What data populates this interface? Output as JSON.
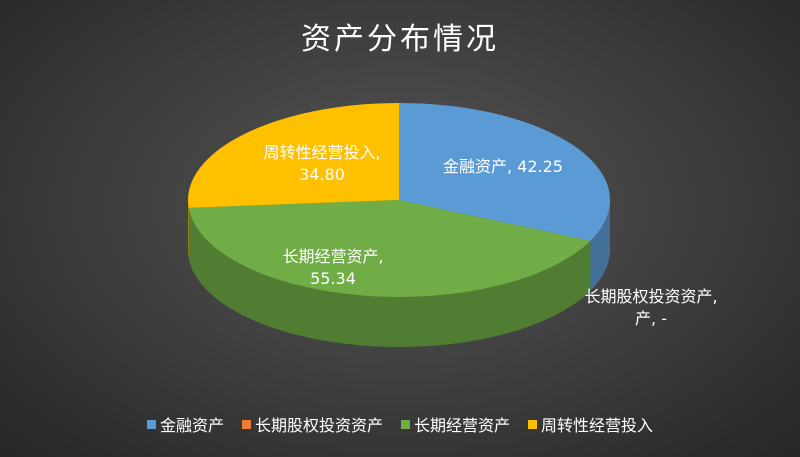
{
  "chart_data": {
    "type": "pie",
    "title": "资产分布情况",
    "categories": [
      "金融资产",
      "长期股权投资资产",
      "长期经营资产",
      "周转性经营投入"
    ],
    "values": [
      42.25,
      0,
      55.34,
      34.8
    ],
    "data_labels": [
      [
        "金融资产, 42.25"
      ],
      [
        "长期股权投资资产,",
        "产, -"
      ],
      [
        "长期经营资产,",
        "55.34"
      ],
      [
        "周转性经营投入,",
        "34.80"
      ]
    ],
    "colors": [
      "#5B9BD5",
      "#ED7D31",
      "#70AD47",
      "#FFC000"
    ],
    "style": "3d",
    "legend": "bottom"
  }
}
